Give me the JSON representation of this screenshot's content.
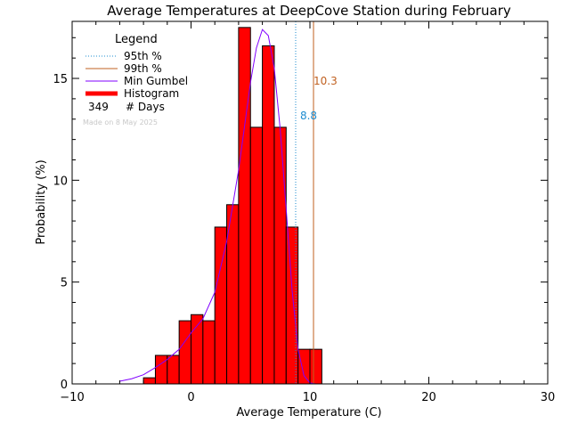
{
  "chart_data": {
    "type": "bar",
    "title": "Average Temperatures at DeepCove Station during February",
    "xlabel": "Average Temperature (C)",
    "ylabel": "Probability (%)",
    "xlim": [
      -10,
      30
    ],
    "ylim": [
      0,
      17.8
    ],
    "x_ticks": [
      -10,
      0,
      10,
      20,
      30
    ],
    "y_ticks": [
      0,
      5,
      10,
      15
    ],
    "histogram": {
      "bin_edges": [
        -4,
        -3,
        -2,
        -1,
        0,
        1,
        2,
        3,
        4,
        5,
        6,
        7,
        8,
        9,
        10,
        11
      ],
      "values": [
        0.3,
        1.4,
        1.4,
        3.1,
        3.4,
        3.1,
        7.7,
        8.8,
        17.5,
        12.6,
        16.6,
        12.6,
        7.7,
        1.7,
        1.7
      ],
      "color": "#ff0000"
    },
    "gumbel_curve": {
      "x": [
        -6,
        -5,
        -4,
        -3,
        -2,
        -1,
        0,
        1,
        2,
        3,
        4,
        5,
        5.5,
        6,
        6.5,
        7,
        7.5,
        8,
        8.5,
        9,
        9.5,
        10,
        10.5
      ],
      "y": [
        0.13,
        0.25,
        0.45,
        0.8,
        1.2,
        1.7,
        2.5,
        3.2,
        4.5,
        7.0,
        10.5,
        14.8,
        16.5,
        17.4,
        17.1,
        15.5,
        12.5,
        8.6,
        4.6,
        1.7,
        0.4,
        0.05,
        0.0
      ],
      "color": "#8000ff"
    },
    "percentile_95": {
      "value": 8.8,
      "label": "8.8",
      "color": "#1e8cd0"
    },
    "percentile_99": {
      "value": 10.3,
      "label": "10.3",
      "color": "#c06020"
    },
    "legend": {
      "placement": "top-left",
      "title": "Legend",
      "entries": [
        {
          "label": "95th %",
          "style": "dotted",
          "color": "#1e8cd0"
        },
        {
          "label": "99th %",
          "style": "solid",
          "color": "#c06020"
        },
        {
          "label": "Min Gumbel",
          "style": "solid",
          "color": "#8000ff"
        },
        {
          "label": "Histogram",
          "style": "thick",
          "color": "#ff0000"
        }
      ],
      "days_count": "349",
      "days_label": "# Days",
      "footnote": "Made on 8 May 2025"
    }
  }
}
